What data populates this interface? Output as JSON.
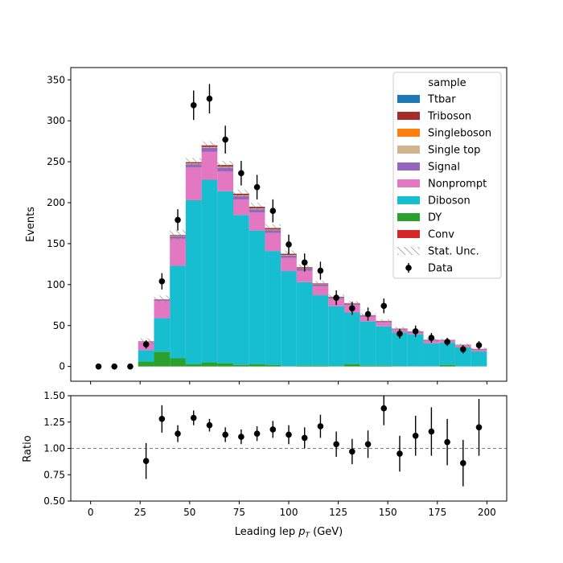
{
  "chart_data": {
    "type": "bar",
    "subtype": "stacked-histogram-with-ratio-panel",
    "xlabel": "Leading lep",
    "xlabel_sub": "T",
    "xlabel_var": "p",
    "xlabel_unit": "(GeV)",
    "xlim": [
      -10,
      210
    ],
    "x_ticks": [
      0,
      25,
      50,
      75,
      100,
      125,
      150,
      175,
      200
    ],
    "main": {
      "ylabel": "Events",
      "ylim": [
        -18,
        365
      ],
      "y_ticks": [
        0,
        50,
        100,
        150,
        200,
        250,
        300,
        350
      ],
      "bin_edges": [
        24,
        32,
        40,
        48,
        56,
        64,
        72,
        80,
        88,
        96,
        104,
        112,
        120,
        128,
        136,
        144,
        152,
        160,
        168,
        176,
        184,
        192,
        200
      ],
      "series": [
        {
          "name": "Ttbar",
          "color": "#1f77b4",
          "values": [
            0,
            0,
            0,
            0,
            0,
            0,
            0,
            0,
            0,
            0,
            0,
            0,
            0,
            0,
            0,
            0,
            0,
            0,
            0,
            0,
            0,
            0
          ]
        },
        {
          "name": "Triboson",
          "color": "#a52a2a",
          "values": [
            0.2,
            0.4,
            1,
            1.5,
            2,
            2,
            2,
            2,
            1.8,
            1.5,
            1.2,
            1,
            0.8,
            0.6,
            0.5,
            0.5,
            0.5,
            0.5,
            0.4,
            0.4,
            0.4,
            0.4
          ]
        },
        {
          "name": "Singleboson",
          "color": "#ff7f0e",
          "values": [
            0,
            0,
            0,
            0,
            0,
            0,
            0,
            0,
            0,
            0,
            0,
            0,
            0,
            0,
            0,
            0,
            0,
            0,
            0,
            0,
            0,
            0
          ]
        },
        {
          "name": "Single top",
          "color": "#d2b48c",
          "values": [
            0.2,
            0.3,
            0.5,
            1,
            1,
            1,
            1,
            1,
            0.8,
            0.6,
            0.5,
            0.4,
            0.3,
            0.3,
            0.2,
            0.2,
            0.2,
            0.2,
            0.2,
            0.2,
            0.2,
            0.2
          ]
        },
        {
          "name": "Signal",
          "color": "#9467bd",
          "values": [
            0.5,
            1.5,
            3,
            4,
            5,
            5,
            4,
            4,
            3.5,
            3,
            2.5,
            2,
            1.5,
            1.5,
            1,
            1,
            1,
            0.8,
            0.8,
            0.8,
            0.6,
            0.6
          ]
        },
        {
          "name": "Nonprompt",
          "color": "#e377c2",
          "values": [
            10,
            21,
            33,
            40,
            34,
            24,
            19,
            22,
            22,
            16,
            14,
            11,
            9,
            9,
            6,
            5,
            3,
            2,
            3,
            2,
            2,
            2
          ]
        },
        {
          "name": "Diboson",
          "color": "#17becf",
          "values": [
            14,
            41,
            113,
            200,
            223,
            210,
            183,
            163,
            139,
            116,
            102,
            86,
            73,
            63,
            54,
            48,
            41,
            39,
            28,
            27,
            23,
            18
          ]
        },
        {
          "name": "DY",
          "color": "#2ca02c",
          "values": [
            6,
            18,
            10,
            3,
            5,
            4,
            2,
            3,
            2,
            0.5,
            1,
            1,
            0.5,
            3,
            1,
            1,
            0.5,
            0.3,
            0.3,
            2,
            0.3,
            0.3
          ]
        },
        {
          "name": "Conv",
          "color": "#d62728",
          "values": [
            0,
            0,
            0,
            0,
            0,
            0,
            0,
            0,
            0,
            0,
            0,
            0,
            0,
            0,
            0,
            0,
            0,
            0,
            0,
            0,
            0,
            0
          ]
        }
      ],
      "stat_unc": {
        "name": "Stat. Unc.",
        "values": [
          3.5,
          4.5,
          6,
          5,
          5,
          5,
          5,
          5,
          4.5,
          4,
          3.5,
          3,
          3,
          2.5,
          2.5,
          2,
          2,
          2,
          2,
          1.5,
          1.5,
          1.5
        ]
      },
      "data": {
        "name": "Data",
        "x": [
          4,
          12,
          20,
          28,
          36,
          44,
          52,
          60,
          68,
          76,
          84,
          92,
          100,
          108,
          116,
          124,
          132,
          140,
          148,
          156,
          164,
          172,
          180,
          188,
          196
        ],
        "y": [
          0,
          0,
          0,
          27,
          104,
          179,
          319,
          327,
          277,
          236,
          219,
          190,
          149,
          127,
          117,
          84,
          71,
          64,
          74,
          40,
          43,
          35,
          30,
          21,
          26
        ],
        "err": [
          0,
          0,
          0,
          5,
          10,
          13,
          18,
          18,
          17,
          15,
          15,
          14,
          12,
          11,
          11,
          9,
          8,
          8,
          9,
          6,
          7,
          6,
          5,
          5,
          5
        ]
      },
      "legend": {
        "title": "sample",
        "placement": "top-right"
      }
    },
    "ratio": {
      "ylabel": "Ratio",
      "ylim": [
        0.5,
        1.5
      ],
      "y_ticks": [
        0.5,
        0.75,
        1.0,
        1.25,
        1.5
      ],
      "y_tick_labels": [
        "0.50",
        "0.75",
        "1.00",
        "1.25",
        "1.50"
      ],
      "reference_line": 1.0,
      "x": [
        28,
        36,
        44,
        52,
        60,
        68,
        76,
        84,
        92,
        100,
        108,
        116,
        124,
        132,
        140,
        148,
        156,
        164,
        172,
        180,
        188,
        196
      ],
      "y": [
        0.88,
        1.28,
        1.14,
        1.29,
        1.22,
        1.13,
        1.11,
        1.14,
        1.18,
        1.13,
        1.1,
        1.21,
        1.04,
        0.97,
        1.04,
        1.38,
        0.95,
        1.12,
        1.16,
        1.06,
        0.86,
        1.2
      ],
      "err": [
        0.17,
        0.13,
        0.08,
        0.07,
        0.06,
        0.07,
        0.07,
        0.07,
        0.08,
        0.09,
        0.1,
        0.11,
        0.12,
        0.12,
        0.13,
        0.16,
        0.17,
        0.19,
        0.23,
        0.22,
        0.22,
        0.27
      ]
    }
  }
}
